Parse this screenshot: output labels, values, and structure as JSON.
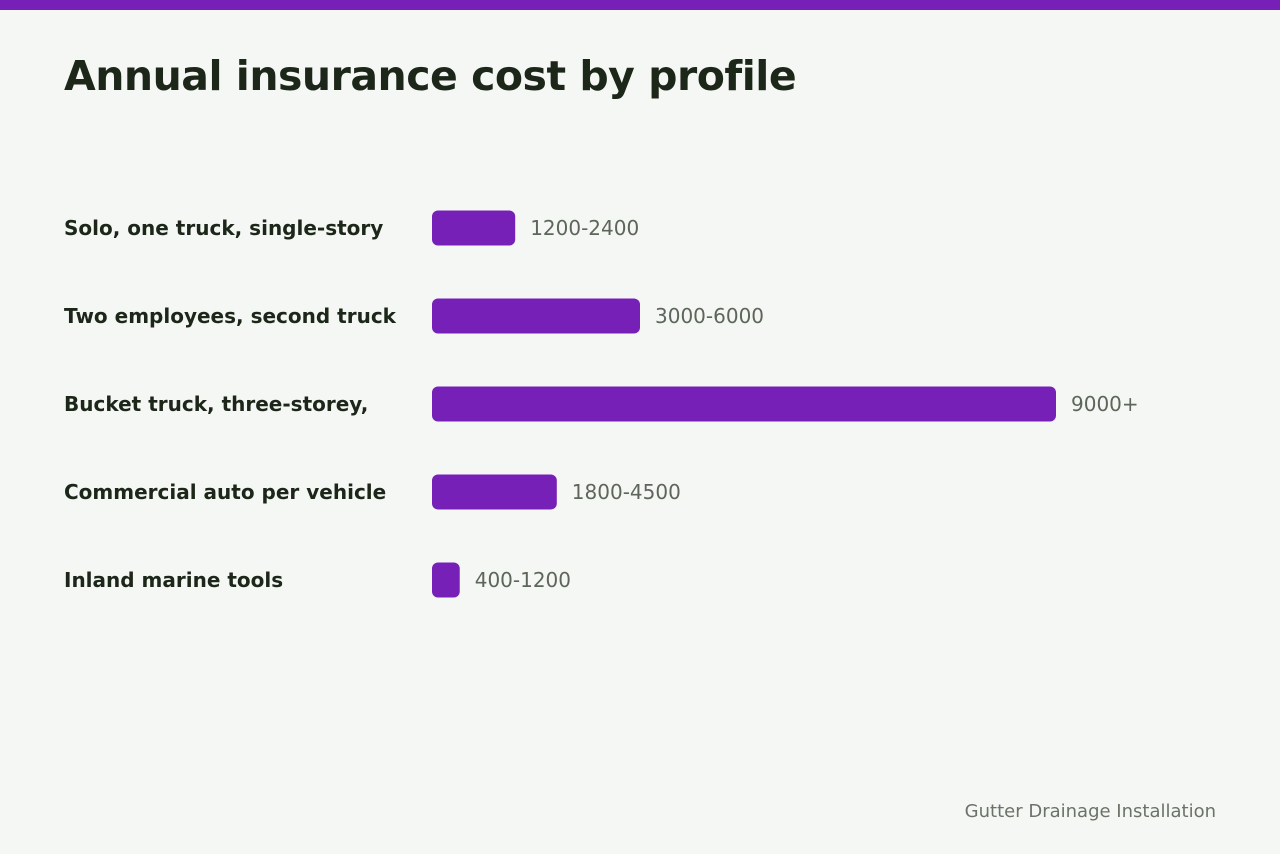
{
  "colors": {
    "accent": "#7620b8",
    "background": "#f5f7f4",
    "title": "#1c2619",
    "value_text": "#5d665a",
    "footer_text": "#6b7368"
  },
  "footer": {
    "text": "Gutter Drainage Installation"
  },
  "chart_data": {
    "type": "bar",
    "orientation": "horizontal",
    "title": "Annual insurance cost by profile",
    "xlabel": "",
    "ylabel": "",
    "grid": false,
    "xlim": [
      0,
      9000
    ],
    "categories": [
      "Solo, one truck, single-story",
      "Two employees, second truck",
      "Bucket truck, three-storey,",
      "Commercial auto per vehicle",
      "Inland marine tools"
    ],
    "values": [
      1200,
      3000,
      9000,
      1800,
      400
    ],
    "value_labels": [
      "1200-2400",
      "3000-6000",
      "9000+",
      "1800-4500",
      "400-1200"
    ]
  }
}
